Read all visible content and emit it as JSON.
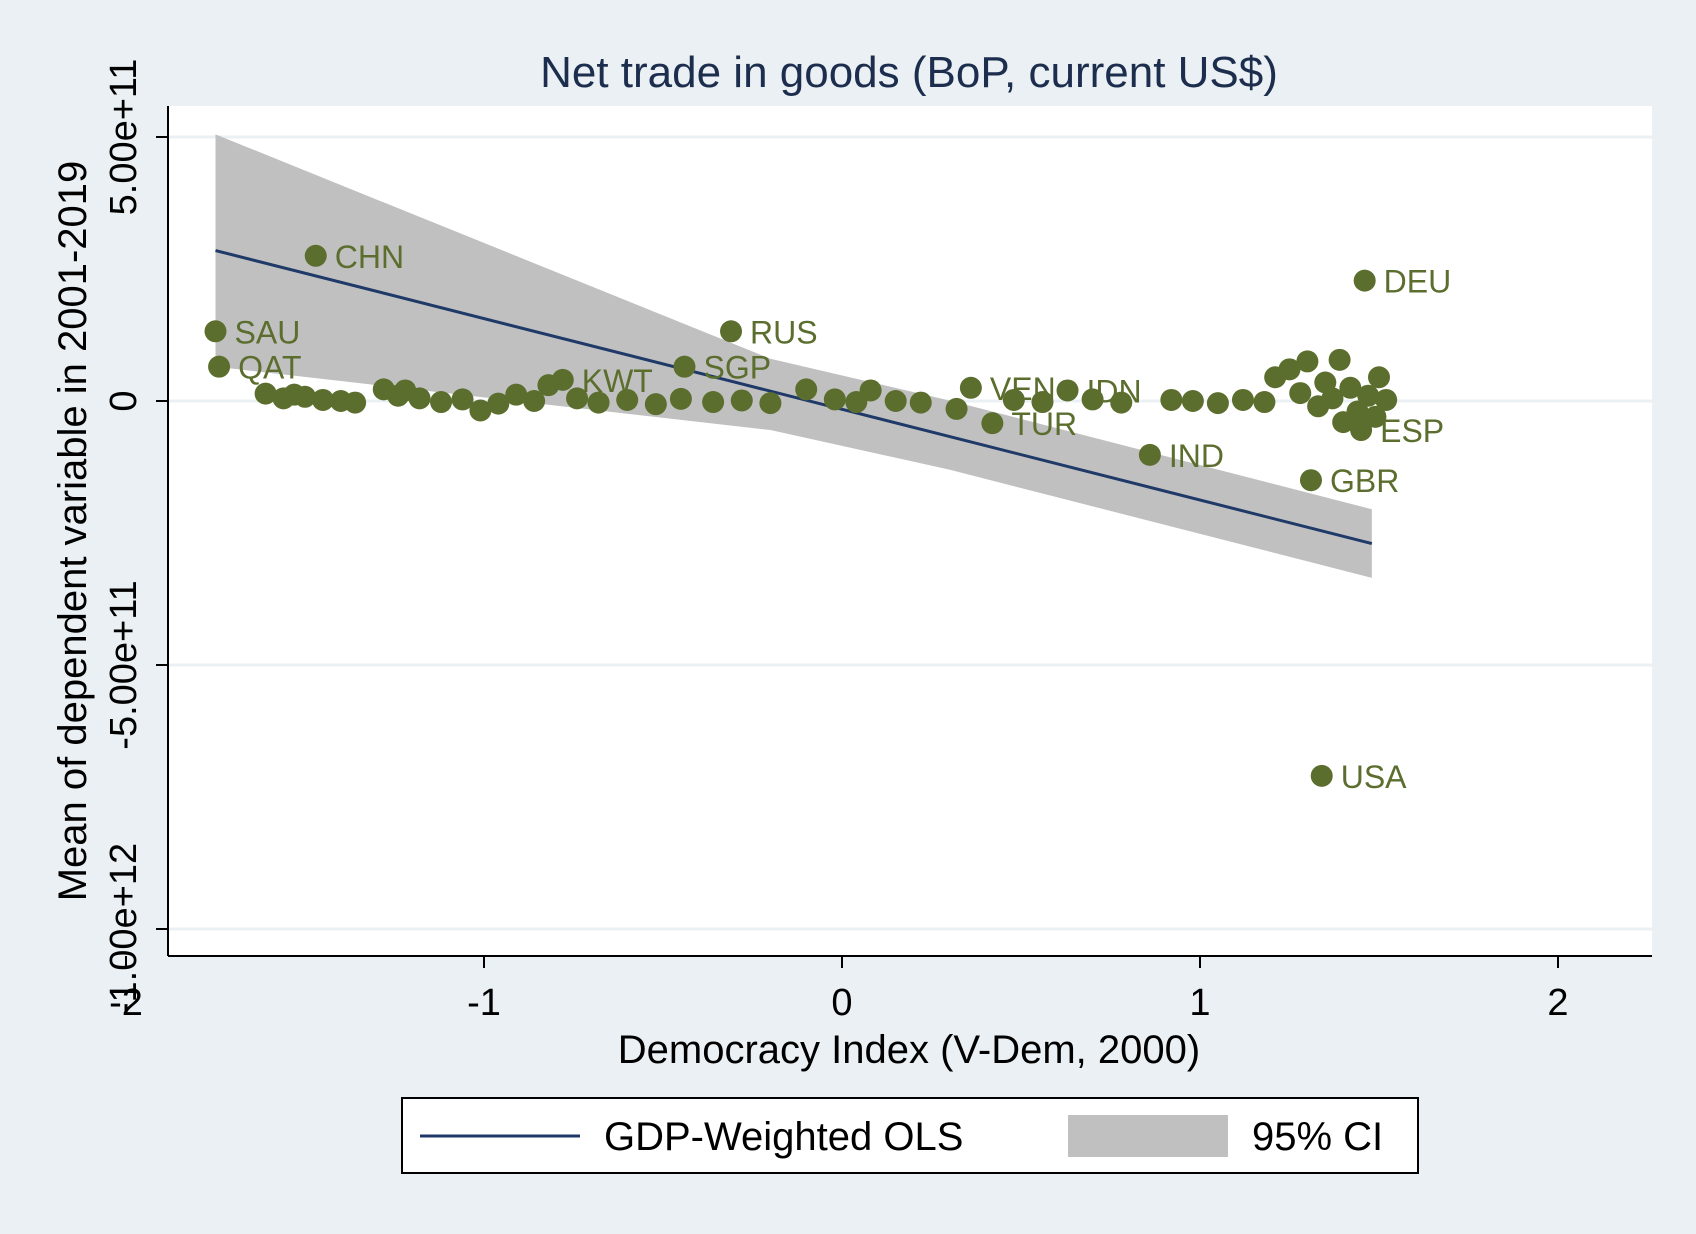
{
  "chart_data": {
    "type": "scatter",
    "title": "Net trade in goods (BoP, current US$)",
    "xlabel": "Democracy Index (V-Dem, 2000)",
    "ylabel": "Mean of dependent variable in 2001-2019",
    "xlim": [
      -2.05,
      2.05
    ],
    "ylim": [
      -1050000000000.0,
      560000000000.0
    ],
    "x_ticks": [
      -2,
      -1,
      0,
      1,
      2
    ],
    "x_tick_labels": [
      "-2",
      "-1",
      "0",
      "1",
      "2"
    ],
    "y_ticks": [
      500000000000.0,
      0,
      -500000000000.0,
      -1000000000000.0
    ],
    "y_tick_labels": [
      "5.00e+11",
      "0",
      "-5.00e+11",
      "-1.00e+12"
    ],
    "grid": "horizontal",
    "colors": {
      "background": "#eaf0f3",
      "plot_area": "#ffffff",
      "points": "#5b6e2e",
      "fit_line": "#1f3a68",
      "ci_band": "#c0c0c0",
      "title": "#1c2d4e"
    },
    "fit_line": {
      "name": "GDP-Weighted OLS",
      "x": [
        -1.75,
        1.48
      ],
      "y": [
        285000000000.0,
        -270000000000.0
      ]
    },
    "ci_band": {
      "name": "95% CI",
      "x": [
        -1.75,
        -0.2,
        0.3,
        1.48
      ],
      "upper": [
        505000000000.0,
        80000000000.0,
        1000000000.0,
        -205000000000.0
      ],
      "lower": [
        65000000000.0,
        -55000000000.0,
        -130000000000.0,
        -335000000000.0
      ]
    },
    "legend": {
      "position": "bottom",
      "items": [
        {
          "label": "GDP-Weighted OLS",
          "kind": "line"
        },
        {
          "label": "95% CI",
          "kind": "area"
        }
      ]
    },
    "points": [
      {
        "label": "CHN",
        "x": -1.47,
        "y": 275000000000.0
      },
      {
        "label": "SAU",
        "x": -1.75,
        "y": 132000000000.0
      },
      {
        "label": "QAT",
        "x": -1.74,
        "y": 65000000000.0
      },
      {
        "label": "RUS",
        "x": -0.31,
        "y": 132000000000.0
      },
      {
        "label": "SGP",
        "x": -0.44,
        "y": 65000000000.0
      },
      {
        "label": "DEU",
        "x": 1.46,
        "y": 228000000000.0
      },
      {
        "label": "IND",
        "x": 0.86,
        "y": -102000000000.0
      },
      {
        "label": "GBR",
        "x": 1.31,
        "y": -150000000000.0
      },
      {
        "label": "USA",
        "x": 1.34,
        "y": -710000000000.0
      },
      {
        "label": "TUR",
        "x": 0.42,
        "y": -42000000000.0
      },
      {
        "label": "ESP",
        "x": 1.45,
        "y": -55000000000.0
      },
      {
        "label": "KWT",
        "x": -0.78,
        "y": 40000000000.0
      },
      {
        "label": "VEN",
        "x": 0.36,
        "y": 25000000000.0
      },
      {
        "label": "IDN",
        "x": 0.63,
        "y": 20000000000.0
      },
      {
        "label": "",
        "x": -1.61,
        "y": 14000000000.0
      },
      {
        "label": "",
        "x": -1.56,
        "y": 5000000000.0
      },
      {
        "label": "",
        "x": -1.53,
        "y": 12000000000.0
      },
      {
        "label": "",
        "x": -1.5,
        "y": 8000000000.0
      },
      {
        "label": "",
        "x": -1.45,
        "y": 2000000000.0
      },
      {
        "label": "",
        "x": -1.4,
        "y": 0.0
      },
      {
        "label": "",
        "x": -1.36,
        "y": -3000000000.0
      },
      {
        "label": "",
        "x": -1.28,
        "y": 22000000000.0
      },
      {
        "label": "",
        "x": -1.24,
        "y": 10000000000.0
      },
      {
        "label": "",
        "x": -1.22,
        "y": 20000000000.0
      },
      {
        "label": "",
        "x": -1.18,
        "y": 5000000000.0
      },
      {
        "label": "",
        "x": -1.12,
        "y": -2000000000.0
      },
      {
        "label": "",
        "x": -1.06,
        "y": 3000000000.0
      },
      {
        "label": "",
        "x": -1.01,
        "y": -18000000000.0
      },
      {
        "label": "",
        "x": -0.96,
        "y": -5000000000.0
      },
      {
        "label": "",
        "x": -0.91,
        "y": 12000000000.0
      },
      {
        "label": "",
        "x": -0.86,
        "y": 0.0
      },
      {
        "label": "",
        "x": -0.82,
        "y": 30000000000.0
      },
      {
        "label": "",
        "x": -0.74,
        "y": 5000000000.0
      },
      {
        "label": "",
        "x": -0.68,
        "y": -3000000000.0
      },
      {
        "label": "",
        "x": -0.6,
        "y": 2000000000.0
      },
      {
        "label": "",
        "x": -0.52,
        "y": -6000000000.0
      },
      {
        "label": "",
        "x": -0.45,
        "y": 4000000000.0
      },
      {
        "label": "",
        "x": -0.36,
        "y": -2000000000.0
      },
      {
        "label": "",
        "x": -0.28,
        "y": 1000000000.0
      },
      {
        "label": "",
        "x": -0.2,
        "y": -4000000000.0
      },
      {
        "label": "",
        "x": -0.1,
        "y": 22000000000.0
      },
      {
        "label": "",
        "x": -0.02,
        "y": 3000000000.0
      },
      {
        "label": "",
        "x": 0.04,
        "y": -2000000000.0
      },
      {
        "label": "",
        "x": 0.08,
        "y": 20000000000.0
      },
      {
        "label": "",
        "x": 0.15,
        "y": 0.0
      },
      {
        "label": "",
        "x": 0.22,
        "y": -3000000000.0
      },
      {
        "label": "",
        "x": 0.32,
        "y": -15000000000.0
      },
      {
        "label": "",
        "x": 0.48,
        "y": 2000000000.0
      },
      {
        "label": "",
        "x": 0.56,
        "y": -2000000000.0
      },
      {
        "label": "",
        "x": 0.7,
        "y": 3000000000.0
      },
      {
        "label": "",
        "x": 0.78,
        "y": -3000000000.0
      },
      {
        "label": "",
        "x": 0.92,
        "y": 2000000000.0
      },
      {
        "label": "",
        "x": 0.98,
        "y": 0.0
      },
      {
        "label": "",
        "x": 1.05,
        "y": -4000000000.0
      },
      {
        "label": "",
        "x": 1.12,
        "y": 2000000000.0
      },
      {
        "label": "",
        "x": 1.18,
        "y": -2000000000.0
      },
      {
        "label": "",
        "x": 1.21,
        "y": 45000000000.0
      },
      {
        "label": "",
        "x": 1.25,
        "y": 60000000000.0
      },
      {
        "label": "",
        "x": 1.28,
        "y": 15000000000.0
      },
      {
        "label": "",
        "x": 1.3,
        "y": 75000000000.0
      },
      {
        "label": "",
        "x": 1.33,
        "y": -10000000000.0
      },
      {
        "label": "",
        "x": 1.35,
        "y": 35000000000.0
      },
      {
        "label": "",
        "x": 1.37,
        "y": 5000000000.0
      },
      {
        "label": "",
        "x": 1.39,
        "y": 78000000000.0
      },
      {
        "label": "",
        "x": 1.4,
        "y": -40000000000.0
      },
      {
        "label": "",
        "x": 1.42,
        "y": 25000000000.0
      },
      {
        "label": "",
        "x": 1.44,
        "y": -20000000000.0
      },
      {
        "label": "",
        "x": 1.47,
        "y": 10000000000.0
      },
      {
        "label": "",
        "x": 1.49,
        "y": -30000000000.0
      },
      {
        "label": "",
        "x": 1.5,
        "y": 45000000000.0
      },
      {
        "label": "",
        "x": 1.52,
        "y": 2000000000.0
      }
    ]
  }
}
